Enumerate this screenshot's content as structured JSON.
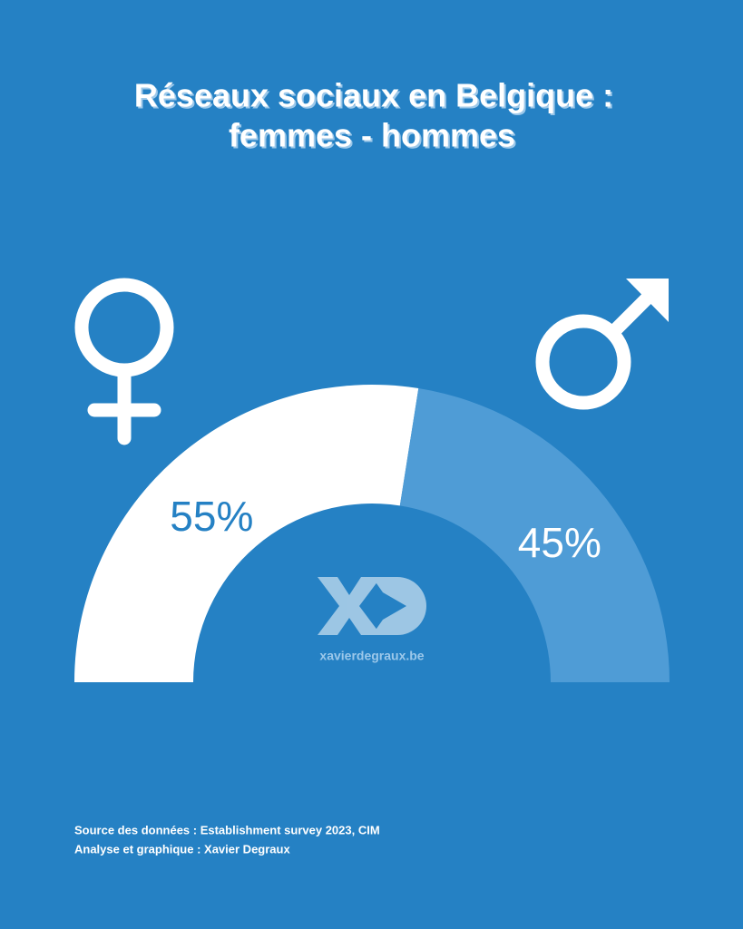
{
  "chart_data": {
    "type": "gauge",
    "title": [
      "Réseaux sociaux en Belgique :",
      "femmes - hommes"
    ],
    "values": [
      55,
      45
    ],
    "value_labels": [
      "55%",
      "45%"
    ],
    "colors": [
      "#ffffff",
      "#4f9cd6"
    ],
    "label_colors": [
      "#2581c4",
      "#ffffff"
    ],
    "watermark": "xavierdegraux.be",
    "source": "Source des données : Establishment survey 2023, CIM",
    "credit": "Analyse et graphique : Xavier Degraux"
  }
}
